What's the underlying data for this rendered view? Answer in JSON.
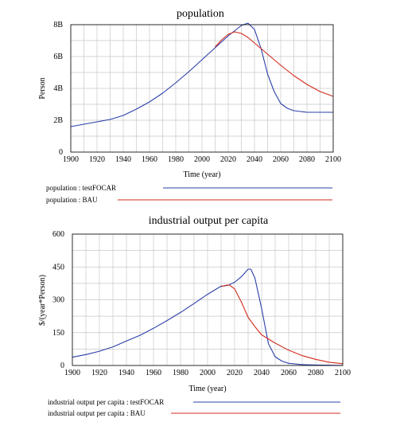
{
  "colors": {
    "series_a": "#2b3fa8",
    "series_b": "#d42a1c",
    "grid": "#c8c8c8",
    "axis": "#000000"
  },
  "chart_data": [
    {
      "type": "line",
      "title": "population",
      "xlabel": "Time (year)",
      "ylabel": "Person",
      "xlim": [
        1900,
        2100
      ],
      "ylim": [
        0,
        8000000000
      ],
      "x_ticks": [
        1900,
        1920,
        1940,
        1960,
        1980,
        2000,
        2020,
        2040,
        2060,
        2080,
        2100
      ],
      "y_ticks": [
        0,
        2000000000,
        4000000000,
        6000000000,
        8000000000
      ],
      "y_tick_labels": [
        "0",
        "2B",
        "4B",
        "6B",
        "8B"
      ],
      "grid": true,
      "series": [
        {
          "name": "population : testFOCAR",
          "color": "#2b3fa8",
          "points": [
            [
              1900,
              1600000000.0
            ],
            [
              1910,
              1750000000.0
            ],
            [
              1920,
              1900000000.0
            ],
            [
              1930,
              2050000000.0
            ],
            [
              1940,
              2300000000.0
            ],
            [
              1950,
              2700000000.0
            ],
            [
              1960,
              3150000000.0
            ],
            [
              1970,
              3700000000.0
            ],
            [
              1980,
              4350000000.0
            ],
            [
              1990,
              5050000000.0
            ],
            [
              2000,
              5800000000.0
            ],
            [
              2010,
              6550000000.0
            ],
            [
              2020,
              7300000000.0
            ],
            [
              2030,
              7950000000.0
            ],
            [
              2035,
              8100000000.0
            ],
            [
              2040,
              7700000000.0
            ],
            [
              2045,
              6500000000.0
            ],
            [
              2050,
              4900000000.0
            ],
            [
              2055,
              3800000000.0
            ],
            [
              2060,
              3050000000.0
            ],
            [
              2065,
              2750000000.0
            ],
            [
              2070,
              2600000000.0
            ],
            [
              2075,
              2550000000.0
            ],
            [
              2080,
              2500000000.0
            ],
            [
              2090,
              2500000000.0
            ],
            [
              2100,
              2500000000.0
            ]
          ]
        },
        {
          "name": "population : BAU",
          "color": "#d42a1c",
          "points": [
            [
              2010,
              6600000000.0
            ],
            [
              2015,
              7050000000.0
            ],
            [
              2020,
              7400000000.0
            ],
            [
              2025,
              7550000000.0
            ],
            [
              2030,
              7450000000.0
            ],
            [
              2035,
              7200000000.0
            ],
            [
              2040,
              6850000000.0
            ],
            [
              2050,
              6150000000.0
            ],
            [
              2060,
              5450000000.0
            ],
            [
              2070,
              4800000000.0
            ],
            [
              2080,
              4250000000.0
            ],
            [
              2090,
              3800000000.0
            ],
            [
              2100,
              3500000000.0
            ]
          ]
        }
      ]
    },
    {
      "type": "line",
      "title": "industrial output per capita",
      "xlabel": "Time (year)",
      "ylabel": "$/(year*Person)",
      "xlim": [
        1900,
        2100
      ],
      "ylim": [
        0,
        600
      ],
      "x_ticks": [
        1900,
        1920,
        1940,
        1960,
        1980,
        2000,
        2020,
        2040,
        2060,
        2080,
        2100
      ],
      "y_ticks": [
        0,
        150,
        300,
        450,
        600
      ],
      "y_tick_labels": [
        "0",
        "150",
        "300",
        "450",
        "600"
      ],
      "grid": true,
      "series": [
        {
          "name": "industrial output per capita : testFOCAR",
          "color": "#2b3fa8",
          "points": [
            [
              1900,
              38
            ],
            [
              1910,
              50
            ],
            [
              1920,
              65
            ],
            [
              1930,
              85
            ],
            [
              1940,
              112
            ],
            [
              1950,
              138
            ],
            [
              1960,
              170
            ],
            [
              1970,
              205
            ],
            [
              1980,
              242
            ],
            [
              1990,
              283
            ],
            [
              2000,
              325
            ],
            [
              2010,
              362
            ],
            [
              2015,
              366
            ],
            [
              2020,
              380
            ],
            [
              2025,
              405
            ],
            [
              2030,
              440
            ],
            [
              2032,
              440
            ],
            [
              2035,
              400
            ],
            [
              2040,
              260
            ],
            [
              2045,
              100
            ],
            [
              2050,
              40
            ],
            [
              2055,
              20
            ],
            [
              2060,
              10
            ],
            [
              2070,
              4
            ],
            [
              2080,
              2
            ],
            [
              2090,
              1
            ],
            [
              2100,
              0
            ]
          ]
        },
        {
          "name": "industrial output per capita : BAU",
          "color": "#d42a1c",
          "points": [
            [
              2010,
              360
            ],
            [
              2013,
              366
            ],
            [
              2016,
              368
            ],
            [
              2020,
              350
            ],
            [
              2025,
              290
            ],
            [
              2030,
              220
            ],
            [
              2035,
              178
            ],
            [
              2040,
              140
            ],
            [
              2050,
              102
            ],
            [
              2060,
              70
            ],
            [
              2070,
              45
            ],
            [
              2080,
              28
            ],
            [
              2090,
              15
            ],
            [
              2100,
              8
            ]
          ]
        }
      ]
    }
  ]
}
